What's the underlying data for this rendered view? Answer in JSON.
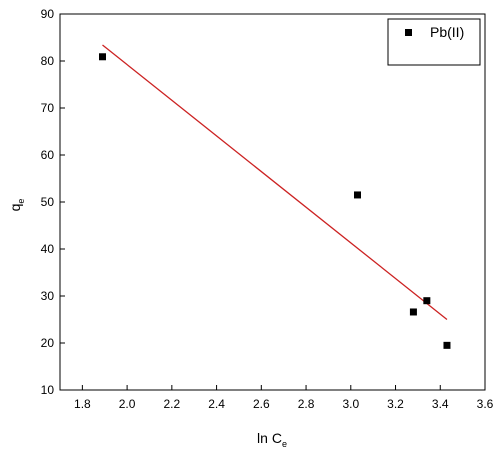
{
  "chart_data": {
    "type": "scatter",
    "title": "",
    "xlabel": {
      "main": "ln C",
      "sub": "e"
    },
    "ylabel": {
      "main": "q",
      "sub": "e"
    },
    "xlim": [
      1.7,
      3.6
    ],
    "ylim": [
      10,
      90
    ],
    "xticks": [
      1.8,
      2.0,
      2.2,
      2.4,
      2.6,
      2.8,
      3.0,
      3.2,
      3.4,
      3.6
    ],
    "xtick_labels": [
      "1.8",
      "2.0",
      "2.2",
      "2.4",
      "2.6",
      "2.8",
      "3.0",
      "3.2",
      "3.4",
      "3.6"
    ],
    "yticks": [
      10,
      20,
      30,
      40,
      50,
      60,
      70,
      80,
      90
    ],
    "ytick_labels": [
      "10",
      "20",
      "30",
      "40",
      "50",
      "60",
      "70",
      "80",
      "90"
    ],
    "grid": false,
    "legend_position": "top-right",
    "series": [
      {
        "name": "Pb(II)",
        "marker": "square",
        "color": "#000000",
        "points": [
          {
            "x": 1.89,
            "y": 80.9
          },
          {
            "x": 3.03,
            "y": 51.5
          },
          {
            "x": 3.28,
            "y": 26.6
          },
          {
            "x": 3.34,
            "y": 29.0
          },
          {
            "x": 3.43,
            "y": 19.5
          }
        ]
      }
    ],
    "fit_line": {
      "color": "#cc2222",
      "start": {
        "x": 1.89,
        "y": 83.4
      },
      "end": {
        "x": 3.43,
        "y": 25.0
      }
    }
  }
}
